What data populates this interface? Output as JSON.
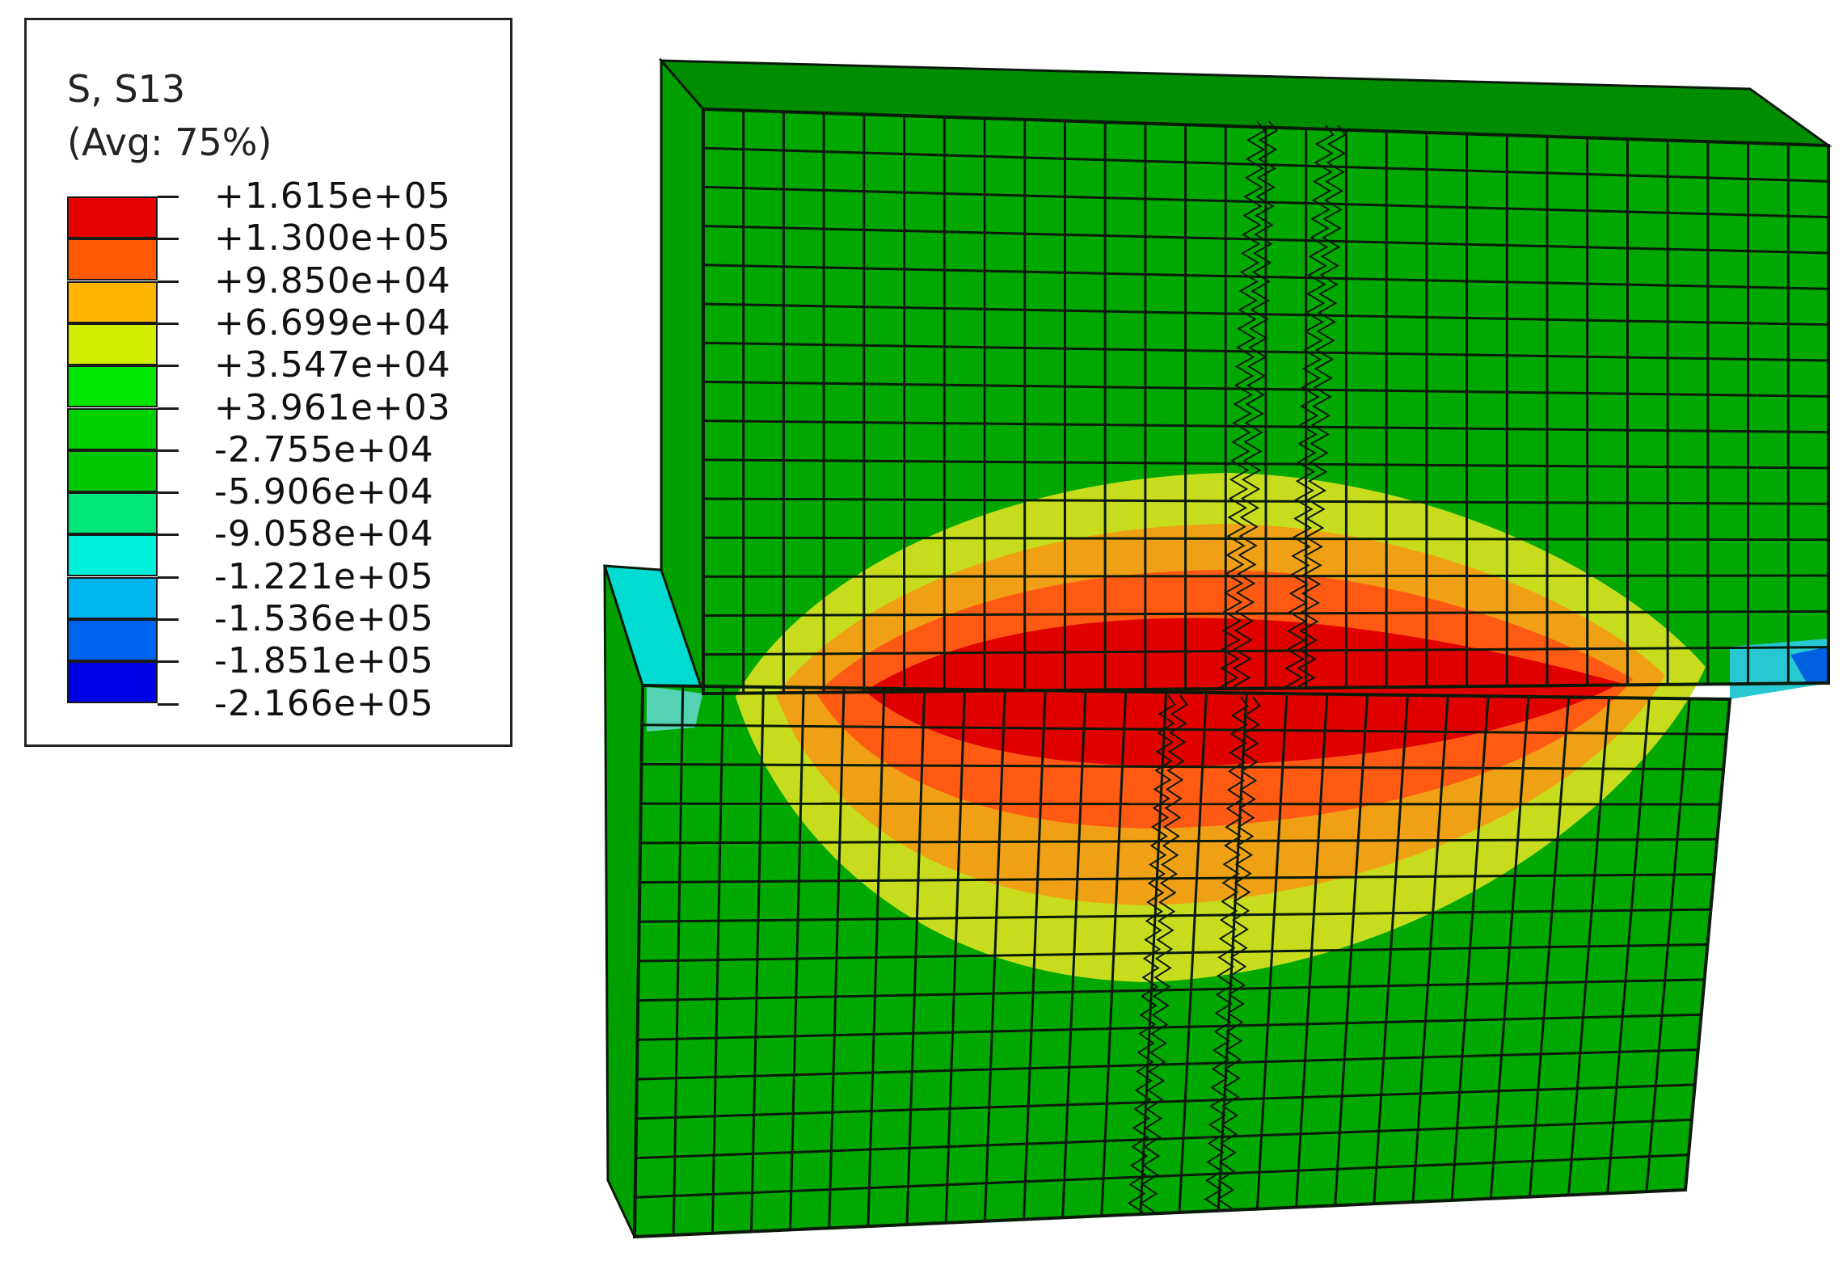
{
  "legend": {
    "title_line1": "S, S13",
    "title_line2": "(Avg: 75%)",
    "bands": [
      {
        "color": "#e60000"
      },
      {
        "color": "#ff5a00"
      },
      {
        "color": "#ffb400"
      },
      {
        "color": "#d2ee00"
      },
      {
        "color": "#00e600"
      },
      {
        "color": "#00d200"
      },
      {
        "color": "#00c800"
      },
      {
        "color": "#00e678"
      },
      {
        "color": "#00f0dc"
      },
      {
        "color": "#00b4f0"
      },
      {
        "color": "#0064f0"
      },
      {
        "color": "#0000e6"
      }
    ],
    "tick_labels": [
      "+1.615e+05",
      "+1.300e+05",
      "+9.850e+04",
      "+6.699e+04",
      "+3.547e+04",
      "+3.961e+03",
      "-2.755e+04",
      "-5.906e+04",
      "-9.058e+04",
      "-1.221e+05",
      "-1.536e+05",
      "-1.851e+05",
      "-2.166e+05"
    ]
  },
  "colors": {
    "mesh_base": "#00a800",
    "mesh_line": "#0a1a0a",
    "contour_yellow": "#c8dc1e",
    "contour_orange": "#f0a014",
    "contour_darkorange": "#ff5a14",
    "contour_red": "#e00000",
    "contour_cyan": "#00e6dc",
    "contour_blue": "#0050f0"
  }
}
